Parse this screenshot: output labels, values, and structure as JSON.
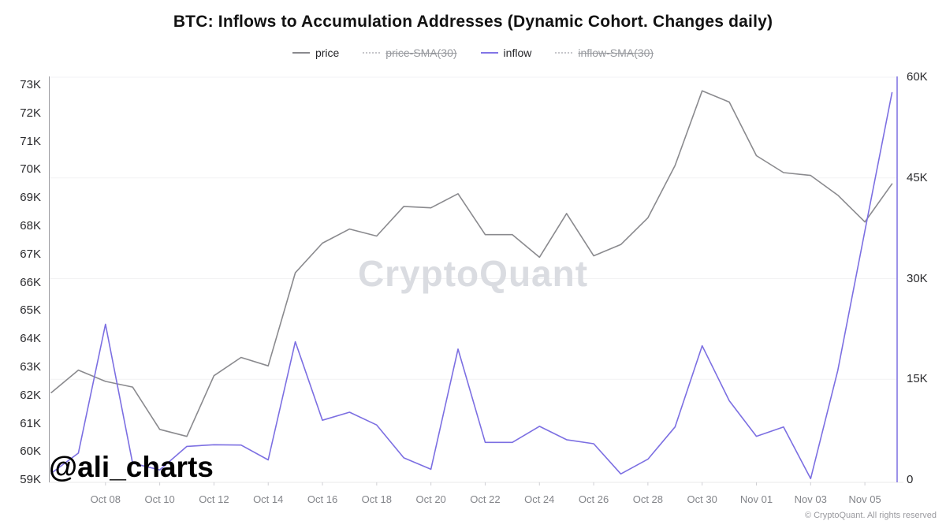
{
  "title": "BTC: Inflows to Accumulation Addresses (Dynamic Cohort. Changes daily)",
  "legend": [
    {
      "label": "price",
      "style": "solid",
      "color": "#8a8a8e",
      "disabled": false
    },
    {
      "label": "price-SMA(30)",
      "style": "dotted",
      "color": "#c6c6cb",
      "disabled": true
    },
    {
      "label": "inflow",
      "style": "solid",
      "color": "#8275e6",
      "disabled": false
    },
    {
      "label": "inflow-SMA(30)",
      "style": "dotted",
      "color": "#c6c6cb",
      "disabled": true
    }
  ],
  "watermark": "CryptoQuant",
  "handle": "@ali_charts",
  "footer": "© CryptoQuant. All rights reserved",
  "colors": {
    "price": "#8a8a8e",
    "inflow": "#7c6fe2",
    "left_axis": "#9b9b9f",
    "right_axis": "#7c6fe2",
    "grid": "#f2f2f4",
    "baseline": "#e8e8ea",
    "tick": "#cfcfd4"
  },
  "chart_data": {
    "type": "line",
    "x": [
      "Oct 06",
      "Oct 07",
      "Oct 08",
      "Oct 09",
      "Oct 10",
      "Oct 11",
      "Oct 12",
      "Oct 13",
      "Oct 14",
      "Oct 15",
      "Oct 16",
      "Oct 17",
      "Oct 18",
      "Oct 19",
      "Oct 20",
      "Oct 21",
      "Oct 22",
      "Oct 23",
      "Oct 24",
      "Oct 25",
      "Oct 26",
      "Oct 27",
      "Oct 28",
      "Oct 29",
      "Oct 30",
      "Oct 31",
      "Nov 01",
      "Nov 02",
      "Nov 03",
      "Nov 04",
      "Nov 05",
      "Nov 06"
    ],
    "series": [
      {
        "name": "price",
        "axis": "left",
        "color": "#8a8a8e",
        "values": [
          62100,
          62900,
          62500,
          62300,
          60800,
          60550,
          62700,
          63350,
          63050,
          66350,
          67400,
          67900,
          67650,
          68700,
          68650,
          69150,
          67700,
          67700,
          66900,
          68450,
          66950,
          67350,
          68300,
          70150,
          72800,
          72400,
          70500,
          69900,
          69800,
          69100,
          68150,
          69500
        ]
      },
      {
        "name": "inflow",
        "axis": "right",
        "color": "#7c6fe2",
        "values": [
          1000,
          4000,
          23200,
          2500,
          1500,
          5000,
          5250,
          5200,
          3000,
          20600,
          8900,
          10100,
          8200,
          3300,
          1600,
          19500,
          5600,
          5600,
          8000,
          6000,
          5400,
          900,
          3100,
          7900,
          20000,
          11800,
          6500,
          7900,
          200,
          16300,
          37100,
          57700
        ]
      }
    ],
    "left_axis": {
      "label_unit": "USD",
      "min": 59000,
      "max": 73000,
      "ticks": [
        "73K",
        "72K",
        "71K",
        "70K",
        "69K",
        "68K",
        "67K",
        "66K",
        "65K",
        "64K",
        "63K",
        "62K",
        "61K",
        "60K",
        "59K"
      ]
    },
    "right_axis": {
      "label_unit": "BTC inflow",
      "min": 0,
      "max": 60000,
      "ticks": [
        "60K",
        "45K",
        "30K",
        "15K",
        "0"
      ]
    },
    "x_tick_labels": [
      "Oct 08",
      "Oct 10",
      "Oct 12",
      "Oct 14",
      "Oct 16",
      "Oct 18",
      "Oct 20",
      "Oct 22",
      "Oct 24",
      "Oct 26",
      "Oct 28",
      "Oct 30",
      "Nov 01",
      "Nov 03",
      "Nov 05"
    ],
    "grid": "horizontal",
    "legend_position": "top"
  }
}
